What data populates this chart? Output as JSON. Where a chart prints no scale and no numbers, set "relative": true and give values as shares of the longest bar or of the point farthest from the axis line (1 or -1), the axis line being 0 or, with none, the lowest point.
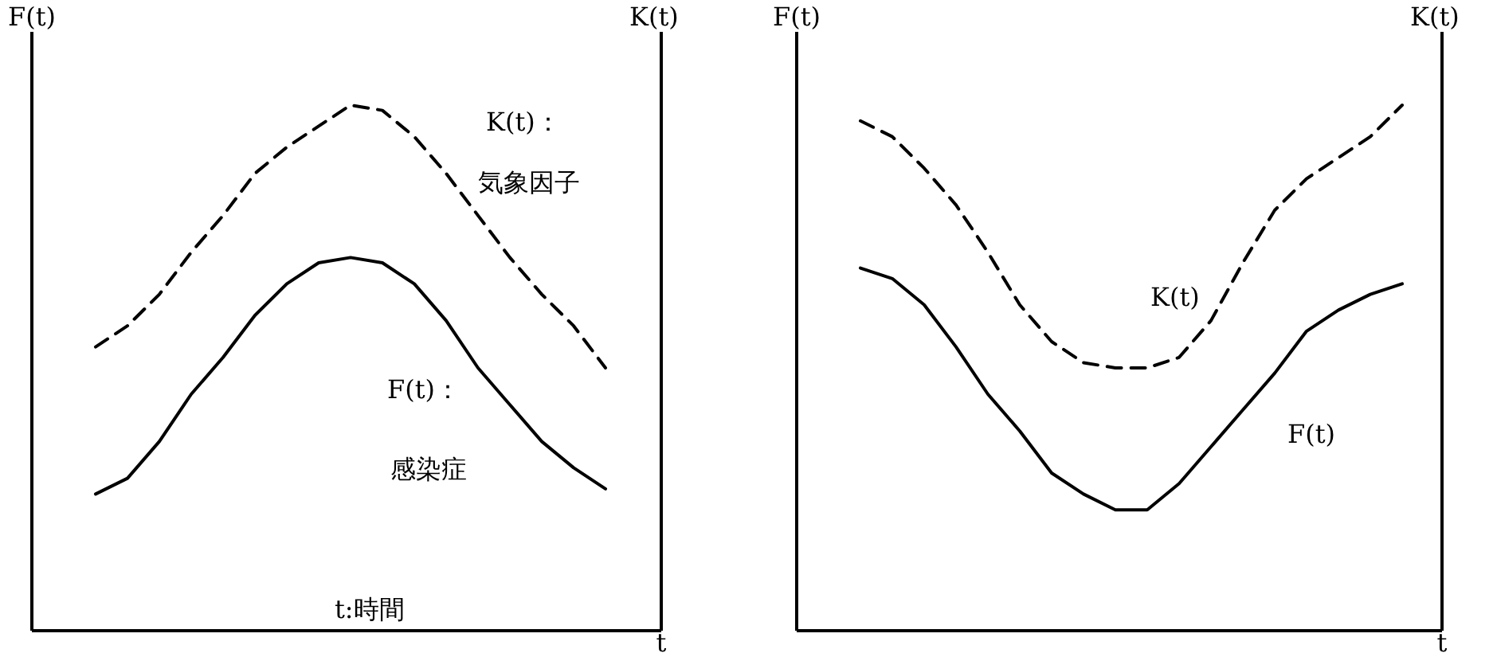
{
  "chart_data": [
    {
      "type": "line",
      "relative": true,
      "xlabel": "t",
      "ylabel": "F(t)",
      "y2label": "K(t)",
      "categories": [
        null,
        null,
        null,
        null,
        null,
        null,
        null,
        null,
        null,
        null,
        null,
        null,
        null,
        null,
        null,
        null,
        null
      ],
      "series": [
        {
          "name": "K(t)：",
          "color": "#000000",
          "line_style": "dashed",
          "values": [
            0.54,
            0.58,
            0.64,
            0.72,
            0.79,
            0.87,
            0.92,
            0.96,
            1.0,
            0.99,
            0.94,
            0.87,
            0.79,
            0.71,
            0.64,
            0.58,
            0.5
          ]
        },
        {
          "name": "F(t)：",
          "color": "#000000",
          "line_style": "solid",
          "values": [
            0.26,
            0.29,
            0.36,
            0.45,
            0.52,
            0.6,
            0.66,
            0.7,
            0.71,
            0.7,
            0.66,
            0.59,
            0.5,
            0.43,
            0.36,
            0.31,
            0.27
          ]
        }
      ],
      "annotations": [
        "気象因子",
        "感染症",
        "t:時間"
      ]
    },
    {
      "type": "line",
      "relative": true,
      "xlabel": "t",
      "ylabel": "F(t)",
      "y2label": "K(t)",
      "categories": [
        null,
        null,
        null,
        null,
        null,
        null,
        null,
        null,
        null,
        null,
        null,
        null,
        null,
        null,
        null,
        null,
        null,
        null
      ],
      "series": [
        {
          "name": "K(t)",
          "color": "#000000",
          "line_style": "dashed",
          "values": [
            0.97,
            0.94,
            0.88,
            0.81,
            0.72,
            0.62,
            0.55,
            0.51,
            0.5,
            0.5,
            0.52,
            0.59,
            0.7,
            0.8,
            0.86,
            0.9,
            0.94,
            1.0
          ]
        },
        {
          "name": "F(t)",
          "color": "#000000",
          "line_style": "solid",
          "values": [
            0.69,
            0.67,
            0.62,
            0.54,
            0.45,
            0.38,
            0.3,
            0.26,
            0.23,
            0.23,
            0.28,
            0.35,
            0.42,
            0.49,
            0.57,
            0.61,
            0.64,
            0.66
          ]
        }
      ]
    }
  ]
}
